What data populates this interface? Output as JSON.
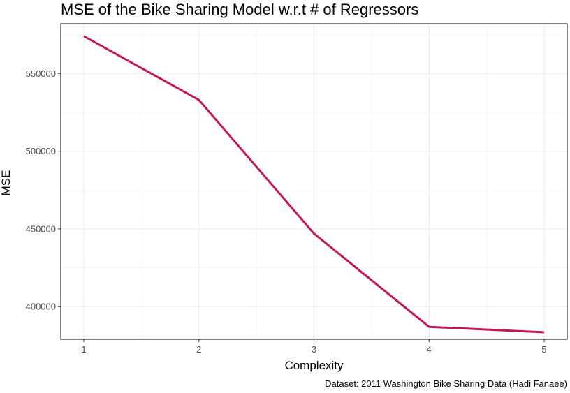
{
  "chart_data": {
    "type": "line",
    "title": "MSE of the Bike Sharing Model w.r.t # of Regressors",
    "xlabel": "Complexity",
    "ylabel": "MSE",
    "caption": "Dataset: 2011 Washington Bike Sharing Data (Hadi Fanaee)",
    "x": [
      1,
      2,
      3,
      4,
      5
    ],
    "series": [
      {
        "values": [
          574000,
          533000,
          447000,
          387000,
          383500
        ],
        "color": "#c2185b"
      }
    ],
    "xlim": [
      0.8,
      5.2
    ],
    "ylim": [
      379000,
      582000
    ],
    "xticks": [
      1,
      2,
      3,
      4,
      5
    ],
    "yticks": [
      400000,
      450000,
      500000,
      550000
    ],
    "grid": true,
    "legend": "none"
  }
}
